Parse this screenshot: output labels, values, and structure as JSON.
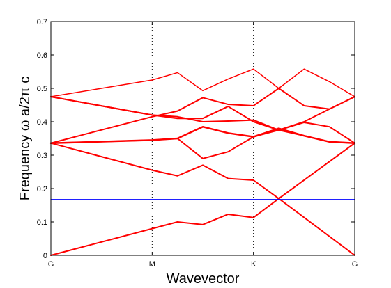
{
  "chart_data": {
    "type": "line",
    "title": "",
    "xlabel": "Wavevector",
    "ylabel": "Frequency ω a/2π c",
    "x_ticks": [
      {
        "value": 0,
        "label": "G"
      },
      {
        "value": 1,
        "label": "M"
      },
      {
        "value": 2,
        "label": "K"
      },
      {
        "value": 3,
        "label": "G"
      }
    ],
    "xlim": [
      0,
      3
    ],
    "ylim": [
      0,
      0.7
    ],
    "y_ticks": [
      0,
      0.1,
      0.2,
      0.3,
      0.4,
      0.5,
      0.6,
      0.7
    ],
    "y_tick_labels": [
      "0",
      "0.1",
      "0.2",
      "0.3",
      "0.4",
      "0.5",
      "0.6",
      "0.7"
    ],
    "grid": "dotted vertical lines at M and K and right edge",
    "legend": "none",
    "colors": {
      "bands": "#ff0000",
      "reference_line": "#0000ff",
      "grid": "#000000"
    },
    "series": [
      {
        "points": [
          [
            0,
            0.0
          ],
          [
            1,
            0.08
          ],
          [
            1.25,
            0.1
          ],
          [
            1.5,
            0.092
          ],
          [
            1.75,
            0.123
          ],
          [
            2,
            0.113
          ],
          [
            2.25,
            0.17
          ],
          [
            3,
            0.0
          ]
        ],
        "width": 2
      },
      {
        "points": [
          [
            0,
            0.336
          ],
          [
            1,
            0.255
          ],
          [
            1.25,
            0.238
          ],
          [
            1.5,
            0.27
          ],
          [
            1.75,
            0.23
          ],
          [
            2,
            0.225
          ],
          [
            2.25,
            0.17
          ],
          [
            3,
            0.336
          ]
        ],
        "width": 2
      },
      {
        "points": [
          [
            0,
            0.336
          ],
          [
            1,
            0.345
          ],
          [
            1.25,
            0.35
          ],
          [
            1.5,
            0.29
          ],
          [
            1.75,
            0.31
          ],
          [
            2,
            0.355
          ],
          [
            2.25,
            0.375
          ],
          [
            2.5,
            0.398
          ],
          [
            2.75,
            0.385
          ],
          [
            3,
            0.336
          ]
        ],
        "width": 2
      },
      {
        "points": [
          [
            0,
            0.336
          ],
          [
            1,
            0.345
          ],
          [
            1.25,
            0.35
          ],
          [
            1.5,
            0.385
          ],
          [
            1.75,
            0.366
          ],
          [
            2,
            0.355
          ],
          [
            2.25,
            0.38
          ],
          [
            2.5,
            0.358
          ],
          [
            2.75,
            0.34
          ],
          [
            3,
            0.336
          ]
        ],
        "width": 2.5
      },
      {
        "points": [
          [
            0,
            0.336
          ],
          [
            1,
            0.415
          ],
          [
            1.25,
            0.432
          ],
          [
            1.5,
            0.472
          ],
          [
            1.75,
            0.452
          ],
          [
            2,
            0.448
          ],
          [
            2.25,
            0.5
          ],
          [
            2.5,
            0.448
          ],
          [
            2.75,
            0.438
          ],
          [
            3,
            0.475
          ]
        ],
        "width": 2
      },
      {
        "points": [
          [
            0,
            0.475
          ],
          [
            1,
            0.42
          ],
          [
            1.25,
            0.41
          ],
          [
            1.5,
            0.41
          ],
          [
            1.75,
            0.446
          ],
          [
            2,
            0.4
          ],
          [
            2.25,
            0.375
          ],
          [
            2.5,
            0.4
          ],
          [
            2.75,
            0.438
          ],
          [
            3,
            0.475
          ]
        ],
        "width": 2
      },
      {
        "points": [
          [
            0,
            0.475
          ],
          [
            1,
            0.42
          ],
          [
            1.25,
            0.415
          ],
          [
            1.5,
            0.4
          ],
          [
            1.75,
            0.402
          ],
          [
            2,
            0.405
          ],
          [
            2.25,
            0.375
          ],
          [
            2.5,
            0.358
          ],
          [
            2.75,
            0.34
          ],
          [
            3,
            0.336
          ]
        ],
        "width": 2
      },
      {
        "points": [
          [
            0,
            0.475
          ],
          [
            1,
            0.525
          ],
          [
            1.25,
            0.547
          ],
          [
            1.5,
            0.493
          ],
          [
            1.75,
            0.528
          ],
          [
            2,
            0.558
          ],
          [
            2.25,
            0.5
          ],
          [
            2.5,
            0.558
          ],
          [
            2.75,
            0.52
          ],
          [
            3,
            0.475
          ]
        ],
        "width": 1.5
      },
      {
        "points": [
          [
            0,
            0.167
          ],
          [
            3,
            0.167
          ]
        ],
        "width": 1.5,
        "color": "#0000ff"
      }
    ]
  }
}
